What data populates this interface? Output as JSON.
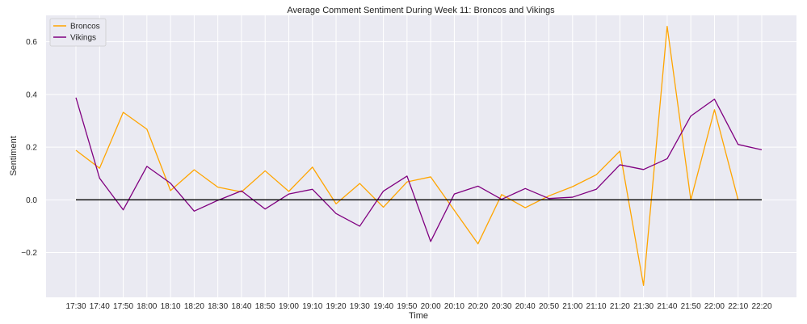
{
  "chart_data": {
    "type": "line",
    "title": "Average Comment Sentiment During Week 11: Broncos and Vikings",
    "xlabel": "Time",
    "ylabel": "Sentiment",
    "ylim": [
      -0.37,
      0.7
    ],
    "yticks": [
      -0.2,
      0.0,
      0.2,
      0.4,
      0.6
    ],
    "ytick_labels": [
      "−0.2",
      "0.0",
      "0.2",
      "0.4",
      "0.6"
    ],
    "grid": true,
    "legend_position": "top-left",
    "background": "#eaeaf2",
    "categories": [
      "17:30",
      "17:40",
      "17:50",
      "18:00",
      "18:10",
      "18:20",
      "18:30",
      "18:40",
      "18:50",
      "19:00",
      "19:10",
      "19:20",
      "19:30",
      "19:40",
      "19:50",
      "20:00",
      "20:10",
      "20:20",
      "20:30",
      "20:40",
      "20:50",
      "21:00",
      "21:10",
      "21:20",
      "21:30",
      "21:40",
      "21:50",
      "22:00",
      "22:10",
      "22:20"
    ],
    "series": [
      {
        "name": "Broncos",
        "color": "#ffa500",
        "values": [
          0.188,
          0.12,
          0.332,
          0.268,
          0.035,
          0.114,
          0.048,
          0.03,
          0.11,
          0.032,
          0.124,
          -0.015,
          0.062,
          -0.028,
          0.068,
          0.087,
          -0.04,
          -0.167,
          0.02,
          -0.03,
          0.015,
          0.05,
          0.095,
          0.185,
          -0.325,
          0.658,
          0.0,
          0.342,
          0.0,
          null
        ]
      },
      {
        "name": "Vikings",
        "color": "#800080",
        "values": [
          0.388,
          0.082,
          -0.038,
          0.127,
          0.063,
          -0.043,
          -0.002,
          0.034,
          -0.035,
          0.022,
          0.04,
          -0.052,
          -0.1,
          0.033,
          0.09,
          -0.158,
          0.022,
          0.052,
          0.002,
          0.043,
          0.005,
          0.01,
          0.04,
          0.133,
          0.115,
          0.156,
          0.318,
          0.382,
          0.21,
          0.19
        ]
      },
      {
        "name": "",
        "color": "#000000",
        "values": [
          0,
          0,
          0,
          0,
          0,
          0,
          0,
          0,
          0,
          0,
          0,
          0,
          0,
          0,
          0,
          0,
          0,
          0,
          0,
          0,
          0,
          0,
          0,
          0,
          0,
          0,
          0,
          0,
          0,
          0
        ]
      }
    ]
  }
}
